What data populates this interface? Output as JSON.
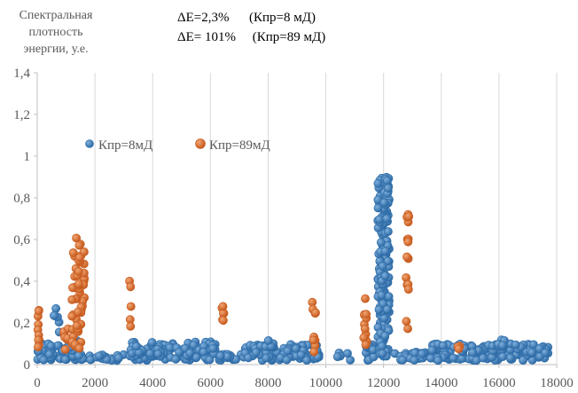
{
  "chart_data": {
    "type": "scatter",
    "ylabel_lines": [
      "Спектральная",
      "плотность",
      "энергии, у.е."
    ],
    "annotations": [
      "ΔE=2,3%      (Кпр=8 мД)",
      "ΔE= 101%     (Кпр=89 мД)"
    ],
    "xlim": [
      0,
      18000
    ],
    "ylim": [
      0,
      1.4
    ],
    "x_ticks": [
      "0",
      "2000",
      "4000",
      "6000",
      "8000",
      "10000",
      "12000",
      "14000",
      "16000",
      "18000"
    ],
    "y_ticks": [
      "0",
      "0,2",
      "0,4",
      "0,6",
      "0,8",
      "1",
      "1,2",
      "1,4"
    ],
    "grid": "vertical",
    "legend_position": "upper-left",
    "series": [
      {
        "name": "Кпр=8мД",
        "color": "#2e6ba6",
        "clusters": [
          {
            "x": [
              0,
              1400
            ],
            "y": [
              0.02,
              0.12
            ],
            "n": 70
          },
          {
            "x": [
              400,
              800
            ],
            "y": [
              0.12,
              0.28
            ],
            "n": 6
          },
          {
            "x": [
              1400,
              3000
            ],
            "y": [
              0.02,
              0.05
            ],
            "n": 25
          },
          {
            "x": [
              3200,
              6200
            ],
            "y": [
              0.02,
              0.11
            ],
            "n": 130
          },
          {
            "x": [
              6300,
              7200
            ],
            "y": [
              0.02,
              0.05
            ],
            "n": 20
          },
          {
            "x": [
              7200,
              9800
            ],
            "y": [
              0.02,
              0.1
            ],
            "n": 110
          },
          {
            "x": [
              7900,
              8200
            ],
            "y": [
              0.08,
              0.12
            ],
            "n": 6
          },
          {
            "x": [
              10400,
              11000
            ],
            "y": [
              0.02,
              0.06
            ],
            "n": 5
          },
          {
            "x": [
              11300,
              11700
            ],
            "y": [
              0.02,
              0.1
            ],
            "n": 15
          },
          {
            "x": [
              11800,
              12200
            ],
            "y": [
              0.04,
              0.9
            ],
            "n": 190
          },
          {
            "x": [
              12300,
              13500
            ],
            "y": [
              0.02,
              0.06
            ],
            "n": 30
          },
          {
            "x": [
              13600,
              17700
            ],
            "y": [
              0.02,
              0.1
            ],
            "n": 170
          },
          {
            "x": [
              15900,
              16200
            ],
            "y": [
              0.08,
              0.12
            ],
            "n": 6
          }
        ]
      },
      {
        "name": "Кпр=89мД",
        "color": "#c65a1e",
        "clusters": [
          {
            "x": [
              20,
              80
            ],
            "y": [
              0.04,
              0.29
            ],
            "n": 10
          },
          {
            "x": [
              900,
              1100
            ],
            "y": [
              0.06,
              0.2
            ],
            "n": 8
          },
          {
            "x": [
              1200,
              1650
            ],
            "y": [
              0.06,
              0.61
            ],
            "n": 55
          },
          {
            "x": [
              3100,
              3250
            ],
            "y": [
              0.13,
              0.46
            ],
            "n": 5
          },
          {
            "x": [
              6380,
              6480
            ],
            "y": [
              0.21,
              0.29
            ],
            "n": 6
          },
          {
            "x": [
              9520,
              9650
            ],
            "y": [
              0.05,
              0.3
            ],
            "n": 9
          },
          {
            "x": [
              11300,
              11420
            ],
            "y": [
              0.05,
              0.32
            ],
            "n": 12
          },
          {
            "x": [
              12780,
              12880
            ],
            "y": [
              0.06,
              0.73
            ],
            "n": 16
          },
          {
            "x": [
              14540,
              14640
            ],
            "y": [
              0.07,
              0.1
            ],
            "n": 3
          }
        ]
      }
    ]
  }
}
